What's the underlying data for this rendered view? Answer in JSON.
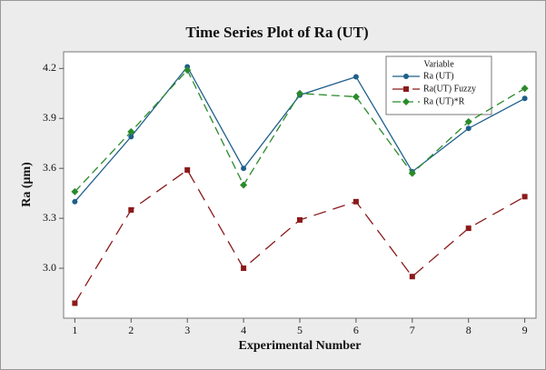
{
  "chart_data": {
    "type": "line",
    "title": "Time Series Plot of Ra (UT)",
    "xlabel": "Experimental Number",
    "ylabel": "Ra  (μm)",
    "legend_title": "Variable",
    "x": [
      1,
      2,
      3,
      4,
      5,
      6,
      7,
      8,
      9
    ],
    "series": [
      {
        "name": "Ra (UT)",
        "color": "#1f5f8b",
        "marker": "circle",
        "dash": "none",
        "values": [
          3.4,
          3.79,
          4.21,
          3.6,
          4.04,
          4.15,
          3.58,
          3.84,
          4.02
        ]
      },
      {
        "name": "Ra(UT) Fuzzy",
        "color": "#8b1a1a",
        "marker": "square",
        "dash": "14 8",
        "values": [
          2.79,
          3.35,
          3.59,
          3.0,
          3.29,
          3.4,
          2.95,
          3.24,
          3.43
        ]
      },
      {
        "name": "Ra (UT)*R",
        "color": "#2a8a2a",
        "marker": "diamond",
        "dash": "9 5",
        "values": [
          3.46,
          3.82,
          4.19,
          3.5,
          4.05,
          4.03,
          3.57,
          3.88,
          4.08
        ]
      }
    ],
    "xlim": [
      0.8,
      9.2
    ],
    "xticks": [
      1,
      2,
      3,
      4,
      5,
      6,
      7,
      8,
      9
    ],
    "ylim": [
      2.7,
      4.3
    ],
    "yticks": [
      {
        "value": 3.0,
        "label": "3.0"
      },
      {
        "value": 3.3,
        "label": "3.3"
      },
      {
        "value": 3.6,
        "label": "3.6"
      },
      {
        "value": 3.9,
        "label": "3.9"
      },
      {
        "value": 4.2,
        "label": "4.2"
      }
    ]
  }
}
